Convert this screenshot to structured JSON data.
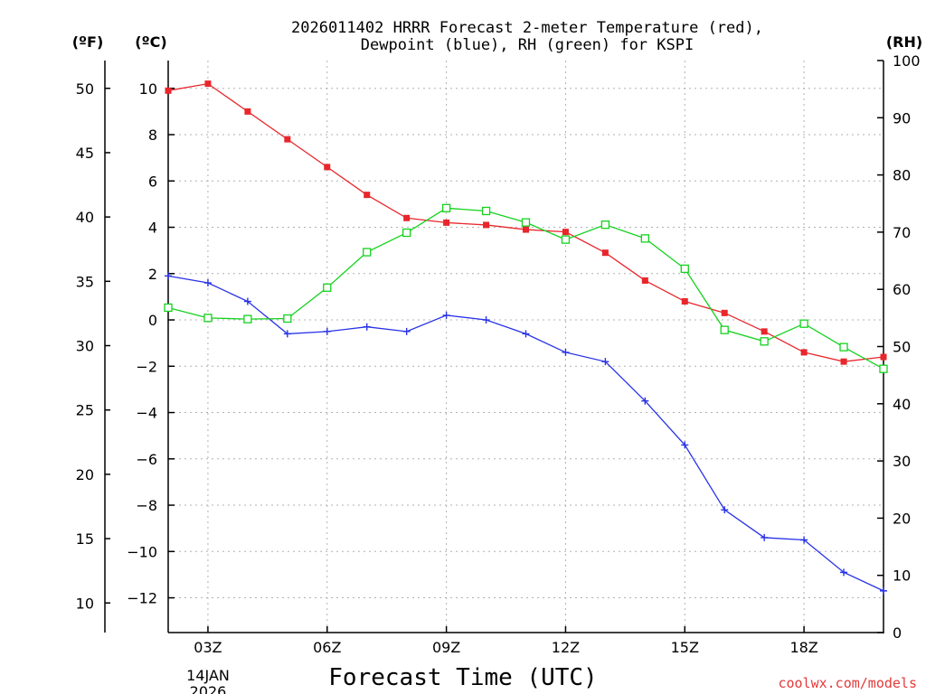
{
  "chart_data": {
    "type": "line",
    "title_line1": "2026011402 HRRR Forecast 2-meter Temperature (red),",
    "title_line2": "Dewpoint (blue), RH (green) for KSPI",
    "xlabel": "Forecast Time (UTC)",
    "unit_f": "(ºF)",
    "unit_c": "(ºC)",
    "unit_rh": "(RH)",
    "date_line1": "14JAN",
    "date_line2": "2026",
    "credit": "coolwx.com/models",
    "hours": [
      2,
      3,
      4,
      5,
      6,
      7,
      8,
      9,
      10,
      11,
      12,
      13,
      14,
      15,
      16,
      17,
      18,
      19,
      20
    ],
    "x_ticks": [
      {
        "hour": 3,
        "label": "03Z"
      },
      {
        "hour": 6,
        "label": "06Z"
      },
      {
        "hour": 9,
        "label": "09Z"
      },
      {
        "hour": 12,
        "label": "12Z"
      },
      {
        "hour": 15,
        "label": "15Z"
      },
      {
        "hour": 18,
        "label": "18Z"
      }
    ],
    "xlim": [
      2,
      20
    ],
    "c_axis": {
      "range": [
        -13.5,
        11.2
      ],
      "ticks": [
        10,
        8,
        6,
        4,
        2,
        0,
        -2,
        -4,
        -6,
        -8,
        -10,
        -12
      ],
      "labels": [
        "10",
        "8",
        "6",
        "4",
        "2",
        "0",
        "−2",
        "−4",
        "−6",
        "−8",
        "−10",
        "−12"
      ]
    },
    "f_axis": {
      "ticks": [
        50,
        45,
        40,
        35,
        30,
        25,
        20,
        15,
        10
      ],
      "labels": [
        "50",
        "45",
        "40",
        "35",
        "30",
        "25",
        "20",
        "15",
        "10"
      ]
    },
    "rh_axis": {
      "range": [
        0,
        100
      ],
      "ticks": [
        100,
        90,
        80,
        70,
        60,
        50,
        40,
        30,
        20,
        10,
        0
      ],
      "labels": [
        "100",
        "90",
        "80",
        "70",
        "60",
        "50",
        "40",
        "30",
        "20",
        "10",
        "0"
      ]
    },
    "series": [
      {
        "name": "Temperature",
        "axis": "c",
        "marker": "filled-square",
        "color": "#e8262b",
        "values": [
          9.9,
          10.2,
          9.0,
          7.8,
          6.6,
          5.4,
          4.4,
          4.2,
          4.1,
          3.9,
          3.8,
          2.9,
          1.7,
          0.8,
          0.3,
          -0.5,
          -1.4,
          -1.8,
          -1.6
        ]
      },
      {
        "name": "Dewpoint",
        "axis": "c",
        "marker": "plus",
        "color": "#2832e6",
        "values": [
          1.9,
          1.6,
          0.8,
          -0.6,
          -0.5,
          -0.3,
          -0.5,
          0.2,
          0.0,
          -0.6,
          -1.4,
          -1.8,
          -3.5,
          -5.4,
          -8.2,
          -9.4,
          -9.5,
          -10.9,
          -11.7
        ]
      },
      {
        "name": "RH",
        "axis": "rh",
        "marker": "open-square",
        "color": "#14d21e",
        "values": [
          56.8,
          55.0,
          54.8,
          54.9,
          60.3,
          66.5,
          69.9,
          74.2,
          73.7,
          71.7,
          68.7,
          71.3,
          68.9,
          63.6,
          52.9,
          50.9,
          54.0,
          49.9,
          46.1
        ]
      }
    ]
  }
}
